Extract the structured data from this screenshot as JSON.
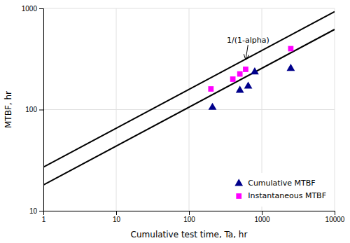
{
  "chart_data": {
    "type": "scatter",
    "xlabel": "Cumulative test time, Ta, hr",
    "ylabel": "MTBF, hr",
    "log": true,
    "grid": true,
    "legend": "lower right",
    "xlim": [
      1,
      10000
    ],
    "ylim": [
      10,
      1000
    ],
    "xticks": [
      1,
      10,
      100,
      1000,
      10000
    ],
    "yticks": [
      10,
      100,
      1000
    ],
    "series": [
      {
        "type": "line",
        "color": "#000000",
        "line_style": "solid",
        "x": [
          1,
          10000
        ],
        "values": [
          18,
          620
        ]
      },
      {
        "type": "line",
        "color": "#000000",
        "line_style": "solid",
        "x": [
          1,
          10000
        ],
        "values": [
          27,
          930
        ]
      },
      {
        "name": "Cumulative MTBF",
        "type": "scatter",
        "marker": "triangle",
        "color": "#00008B",
        "x": [
          210,
          500,
          650,
          800,
          2500
        ],
        "values": [
          105,
          155,
          170,
          235,
          255
        ]
      },
      {
        "name": "Instantaneous MTBF",
        "type": "scatter",
        "marker": "square",
        "color": "#FF00FF",
        "x": [
          200,
          400,
          500,
          600,
          2500
        ],
        "values": [
          160,
          200,
          225,
          250,
          400
        ]
      }
    ],
    "annotations": [
      {
        "text": "1/(1-alpha)",
        "x": 330,
        "y": 480,
        "arrow_x": 600,
        "arrow_y": 310
      }
    ]
  }
}
